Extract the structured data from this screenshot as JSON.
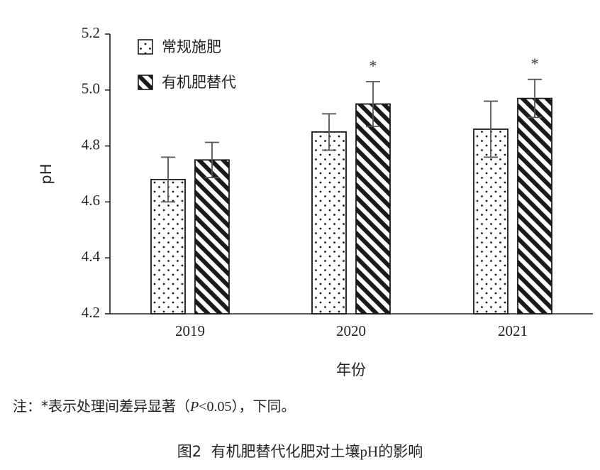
{
  "chart_data": {
    "type": "bar",
    "categories": [
      "2019",
      "2020",
      "2021"
    ],
    "series": [
      {
        "name": "常规施肥",
        "pattern": "dots",
        "values": [
          4.68,
          4.85,
          4.86
        ],
        "errors": [
          0.08,
          0.065,
          0.1
        ],
        "significance": [
          "",
          "",
          ""
        ]
      },
      {
        "name": "有机肥替代",
        "pattern": "diagonal-stripes",
        "values": [
          4.75,
          4.95,
          4.97
        ],
        "errors": [
          0.063,
          0.08,
          0.068
        ],
        "significance": [
          "",
          "*",
          "*"
        ]
      }
    ],
    "xlabel": "年份",
    "ylabel": "pH",
    "ylim": [
      4.2,
      5.2
    ],
    "yticks": [
      "4.2",
      "4.4",
      "4.6",
      "4.8",
      "5.0",
      "5.2"
    ],
    "grid": false,
    "legend_position": "top-left"
  },
  "note": {
    "prefix": "注：*表示处理间差异显著（",
    "p": "P",
    "threshold": "<0.05",
    "suffix": "），下同。"
  },
  "caption": {
    "figure_no": "图2",
    "text_before": "有机肥替代化肥对土壤",
    "ph": "pH",
    "text_after": "的影响"
  },
  "colors": {
    "ink": "#1a1a1a",
    "error_bar": "#555555",
    "background": "#ffffff"
  }
}
